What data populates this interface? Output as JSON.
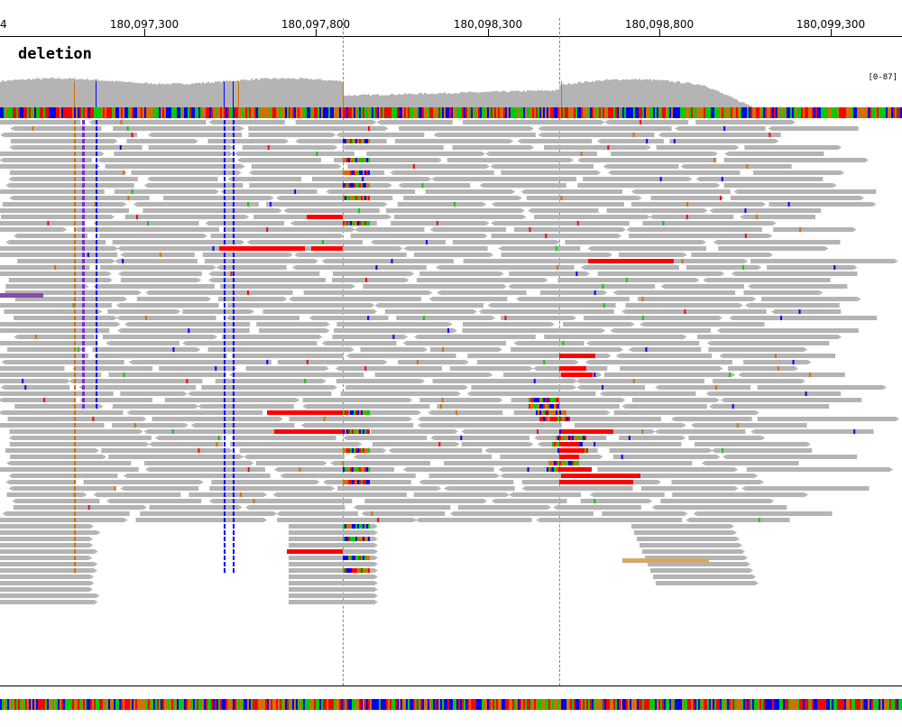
{
  "ruler": {
    "edge_label": "4",
    "ticks": [
      "180,097,300",
      "180,097,800",
      "180,098,300",
      "180,098,800",
      "180,099,300"
    ]
  },
  "track": {
    "name": "deletion",
    "coverage_range": "[0-87]"
  },
  "colors": {
    "read": "#b4b4b4",
    "coverage": "#b4b4b4",
    "deletion_red": "#ff0000",
    "base_A": "#00cc00",
    "base_C": "#0000ff",
    "base_G": "#d17105",
    "base_T": "#ff0000",
    "soft_clip_purple": "#8a4aa8",
    "orange_read": "#d4a86a"
  }
}
